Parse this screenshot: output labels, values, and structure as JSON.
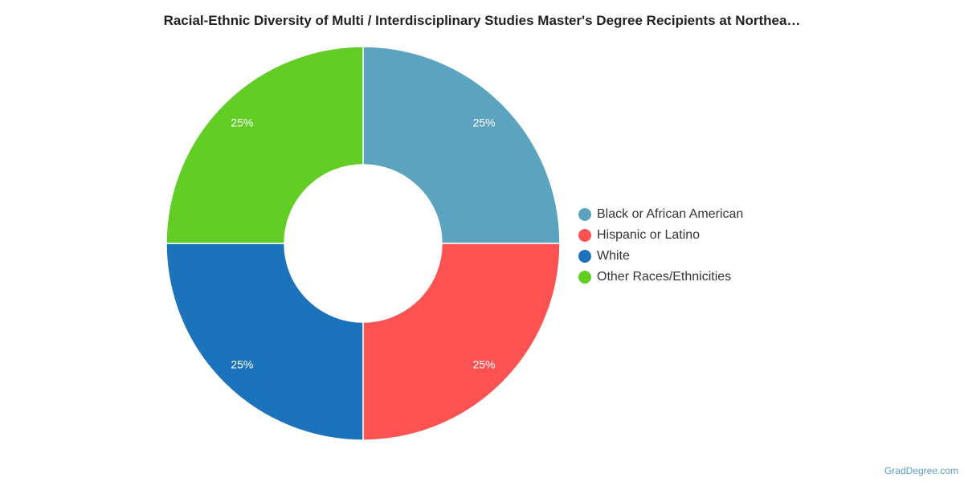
{
  "chart_data": {
    "type": "pie",
    "donut": true,
    "title": "Racial-Ethnic Diversity of Multi / Interdisciplinary Studies Master's Degree Recipients at Northea…",
    "categories": [
      "Black or African American",
      "Hispanic or Latino",
      "White",
      "Other Races/Ethnicities"
    ],
    "values": [
      25,
      25,
      25,
      25
    ],
    "data_labels": [
      "25%",
      "25%",
      "25%",
      "25%"
    ],
    "colors": [
      "#5ba3bf",
      "#fc5252",
      "#1c73bb",
      "#62cd25"
    ],
    "legend_position": "right"
  },
  "source_credit": "GradDegree.com"
}
